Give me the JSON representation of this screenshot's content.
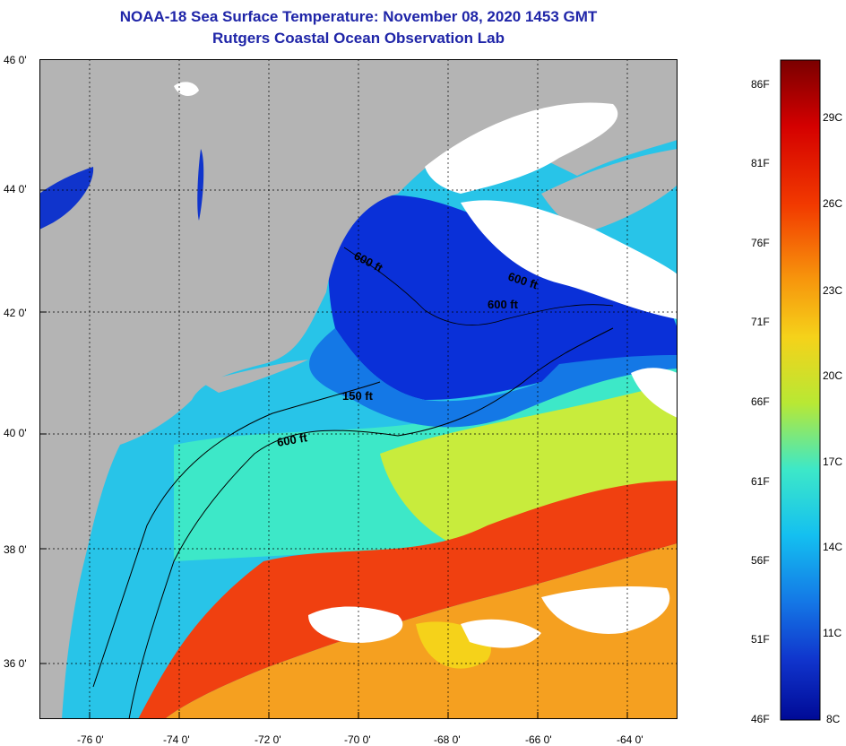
{
  "header": {
    "title": "NOAA-18 Sea Surface Temperature:  November 08, 2020 1453 GMT",
    "subtitle": "Rutgers Coastal Ocean Observation Lab"
  },
  "axes": {
    "latitude_labels": [
      "46 0'",
      "44 0'",
      "42 0'",
      "40 0'",
      "38 0'",
      "36 0'"
    ],
    "longitude_labels": [
      "-76 0'",
      "-74 0'",
      "-72 0'",
      "-70 0'",
      "-68 0'",
      "-66 0'",
      "-64 0'"
    ]
  },
  "contours": {
    "labels": [
      "600 ft",
      "600 ft",
      "600 ft",
      "150 ft",
      "600 ft"
    ]
  },
  "colorbar": {
    "fahrenheit_labels": [
      "86F",
      "81F",
      "76F",
      "71F",
      "66F",
      "61F",
      "56F",
      "51F"
    ],
    "celsius_labels": [
      "29C",
      "26C",
      "23C",
      "20C",
      "17C",
      "14C",
      "11C"
    ],
    "min_f": "46F",
    "min_c": "8C",
    "colors": [
      "#7a0000",
      "#d40000",
      "#f23a00",
      "#f7940c",
      "#f5d21a",
      "#b8e834",
      "#3de8c8",
      "#14c0f0",
      "#1478e6",
      "#1034cc",
      "#000a96"
    ]
  },
  "map_colors": {
    "land": "#b4b4b4",
    "cloud": "#ffffff",
    "cold": "#0a30d8",
    "cool": "#1ab0f0",
    "mild": "#4ee8d0",
    "warm": "#d8f040",
    "hot": "#f5a020",
    "stream": "#f04010"
  }
}
